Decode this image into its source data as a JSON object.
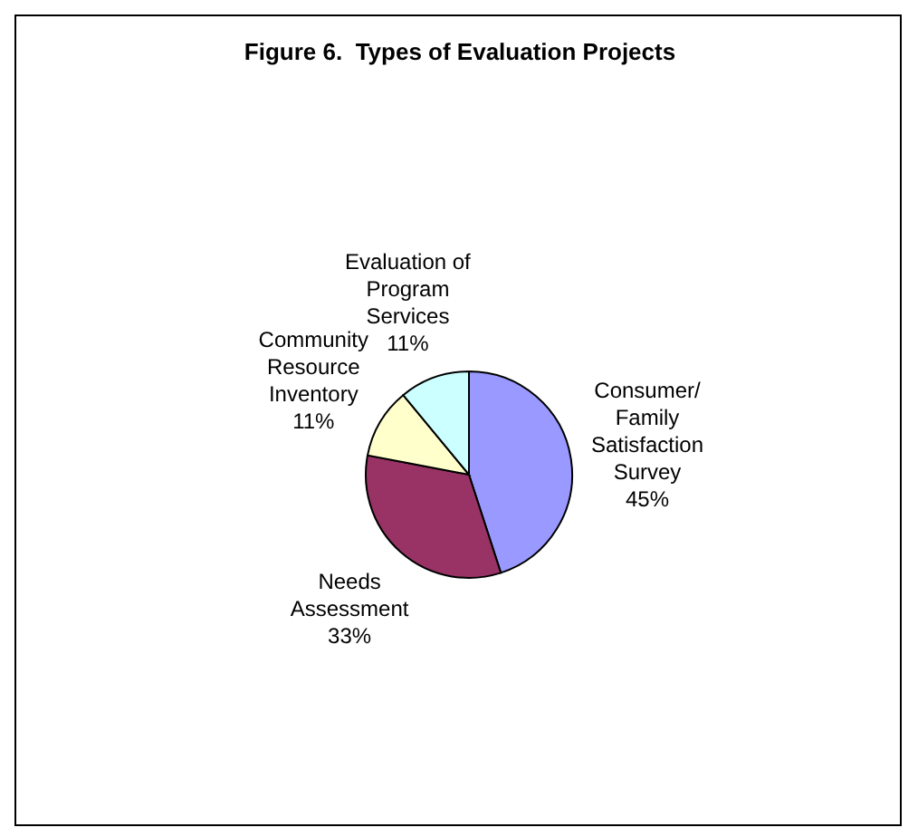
{
  "chart_data": {
    "type": "pie",
    "title": "Figure 6.  Types of Evaluation Projects",
    "categories": [
      "Consumer/ Family Satisfaction Survey",
      "Needs Assessment",
      "Community Resource Inventory",
      "Evaluation of Program Services"
    ],
    "values": [
      45,
      33,
      11,
      11
    ],
    "colors": [
      "#9999ff",
      "#993366",
      "#ffffcc",
      "#ccffff"
    ],
    "value_labels": [
      "45%",
      "33%",
      "11%",
      "11%"
    ]
  }
}
